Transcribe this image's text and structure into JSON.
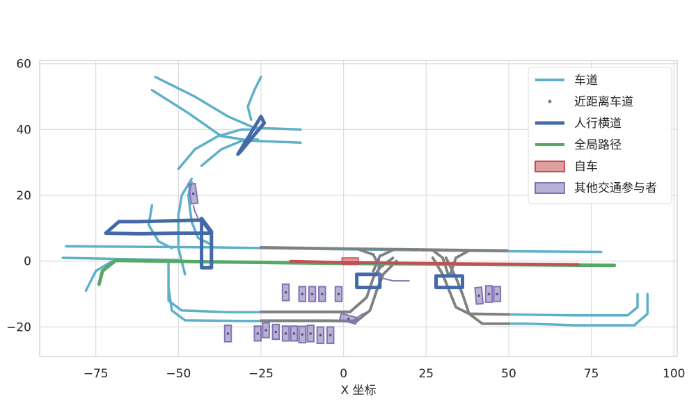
{
  "chart_data": {
    "type": "line",
    "title": "",
    "xlabel": "X 坐标",
    "ylabel": "",
    "xlim": [
      -92,
      101
    ],
    "ylim": [
      -29,
      61
    ],
    "xticks": [
      -75,
      -50,
      -25,
      0,
      25,
      50,
      75,
      100
    ],
    "yticks": [
      -20,
      0,
      20,
      40,
      60
    ],
    "xtick_labels": [
      "−75",
      "−50",
      "−25",
      "0",
      "25",
      "50",
      "75",
      "100"
    ],
    "ytick_labels": [
      "−20",
      "0",
      "20",
      "40",
      "60"
    ],
    "grid": true,
    "legend_position": "top-right",
    "legend": [
      {
        "label": "车道",
        "kind": "line",
        "color": "#5eb0c9"
      },
      {
        "label": "近距离车道",
        "kind": "dot",
        "color": "#808080"
      },
      {
        "label": "人行横道",
        "kind": "thick-line",
        "color": "#4469a8"
      },
      {
        "label": "全局路径",
        "kind": "line",
        "color": "#55a868"
      },
      {
        "label": "自车",
        "kind": "patch",
        "color": "#c44e52"
      },
      {
        "label": "其他交通参与者",
        "kind": "patch",
        "color": "#8172b3"
      }
    ],
    "colors": {
      "lane": "#5eb0c9",
      "near_lane": "#808080",
      "crosswalk": "#4469a8",
      "global_path": "#55a868",
      "ego": "#c44e52",
      "agent": "#8172b3"
    },
    "lanes": [
      [
        [
          -84,
          4.5
        ],
        [
          -40,
          4.2
        ],
        [
          0,
          3.6
        ],
        [
          40,
          3.1
        ],
        [
          78,
          2.8
        ]
      ],
      [
        [
          -85,
          1
        ],
        [
          -66,
          0.6
        ],
        [
          -50,
          0.3
        ]
      ],
      [
        [
          -57,
          56
        ],
        [
          -45,
          50
        ],
        [
          -35,
          44
        ],
        [
          -27,
          40.5
        ],
        [
          -13,
          40
        ]
      ],
      [
        [
          -58,
          52
        ],
        [
          -47,
          45
        ],
        [
          -37,
          38
        ],
        [
          -28,
          36.6
        ],
        [
          -13,
          36
        ]
      ],
      [
        [
          -25,
          56
        ],
        [
          -27,
          52
        ],
        [
          -29,
          47
        ],
        [
          -28,
          43
        ]
      ],
      [
        [
          -50,
          28
        ],
        [
          -45,
          34
        ],
        [
          -38,
          38
        ],
        [
          -31,
          40
        ],
        [
          -27,
          40
        ]
      ],
      [
        [
          -43,
          29
        ],
        [
          -37,
          34
        ],
        [
          -31,
          36.5
        ],
        [
          -26,
          37
        ]
      ],
      [
        [
          -46,
          25
        ],
        [
          -49,
          20
        ],
        [
          -50,
          14
        ],
        [
          -50,
          5
        ]
      ],
      [
        [
          -58,
          17
        ],
        [
          -59,
          11
        ],
        [
          -56,
          6
        ],
        [
          -52,
          4
        ]
      ],
      [
        [
          -50,
          4
        ],
        [
          -49,
          0
        ],
        [
          -48,
          -4
        ]
      ],
      [
        [
          -46,
          24
        ],
        [
          -47,
          20
        ],
        [
          -46,
          12
        ],
        [
          -44,
          7
        ],
        [
          -40,
          5
        ]
      ],
      [
        [
          -78,
          -9
        ],
        [
          -75,
          -3
        ],
        [
          -70,
          0
        ]
      ],
      [
        [
          -53,
          0
        ],
        [
          -53,
          -12
        ],
        [
          -49,
          -15
        ],
        [
          -35,
          -15.5
        ],
        [
          -10,
          -15.5
        ],
        [
          2,
          -15.5
        ],
        [
          7,
          -11
        ],
        [
          9,
          -5
        ],
        [
          11,
          -2
        ],
        [
          15,
          1
        ]
      ],
      [
        [
          -53,
          -8
        ],
        [
          -52,
          -15
        ],
        [
          -48,
          -18
        ],
        [
          -30,
          -18.2
        ],
        [
          -5,
          -18.2
        ],
        [
          4,
          -18.3
        ],
        [
          8,
          -15
        ],
        [
          10,
          -9
        ],
        [
          12,
          -4
        ],
        [
          16,
          0
        ]
      ],
      [
        [
          27,
          1
        ],
        [
          30,
          -4
        ],
        [
          32,
          -9
        ],
        [
          34,
          -14
        ],
        [
          38,
          -16
        ],
        [
          50,
          -16.2
        ],
        [
          70,
          -16.5
        ],
        [
          86,
          -16.5
        ],
        [
          89,
          -14
        ],
        [
          89,
          -10
        ]
      ],
      [
        [
          31,
          1
        ],
        [
          34,
          -5
        ],
        [
          36,
          -10
        ],
        [
          38,
          -16
        ],
        [
          42,
          -19
        ],
        [
          55,
          -19
        ],
        [
          70,
          -19.5
        ],
        [
          88,
          -19.5
        ],
        [
          92,
          -16
        ],
        [
          92,
          -10
        ]
      ]
    ],
    "near_lanes": [
      [
        [
          -25,
          4.2
        ],
        [
          0,
          3.8
        ],
        [
          25,
          3.5
        ],
        [
          50,
          3.2
        ]
      ],
      [
        [
          -25,
          -15.4
        ],
        [
          -10,
          -15.4
        ],
        [
          2,
          -15.4
        ],
        [
          7,
          -11
        ],
        [
          9,
          -5
        ],
        [
          11,
          -2
        ],
        [
          15,
          1
        ]
      ],
      [
        [
          -25,
          -18.1
        ],
        [
          -5,
          -18.1
        ],
        [
          4,
          -18.2
        ],
        [
          8,
          -15
        ],
        [
          10,
          -9
        ],
        [
          12,
          -4
        ],
        [
          16,
          0
        ]
      ],
      [
        [
          5,
          3.4
        ],
        [
          9,
          2
        ],
        [
          11,
          -2
        ]
      ],
      [
        [
          15,
          3.4
        ],
        [
          11,
          1.5
        ],
        [
          9,
          -3
        ]
      ],
      [
        [
          27,
          3.3
        ],
        [
          30,
          1
        ],
        [
          32,
          -5
        ]
      ],
      [
        [
          38,
          3.2
        ],
        [
          34,
          1
        ],
        [
          32,
          -5
        ]
      ],
      [
        [
          27,
          1
        ],
        [
          30,
          -4
        ],
        [
          32,
          -9
        ],
        [
          34,
          -14
        ],
        [
          38,
          -16
        ],
        [
          50,
          -16.2
        ]
      ],
      [
        [
          31,
          1
        ],
        [
          34,
          -5
        ],
        [
          36,
          -10
        ],
        [
          38,
          -16
        ],
        [
          42,
          -19
        ],
        [
          50,
          -19
        ]
      ]
    ],
    "crosswalks": [
      [
        [
          -72,
          8.5
        ],
        [
          -68,
          12
        ],
        [
          -62,
          12
        ],
        [
          -50,
          12.3
        ],
        [
          -43,
          12.5
        ],
        [
          -40,
          8.5
        ],
        [
          -50,
          8.5
        ],
        [
          -62,
          8.3
        ],
        [
          -72,
          8.5
        ]
      ],
      [
        [
          -43,
          13
        ],
        [
          -43,
          -2
        ],
        [
          -40,
          -2
        ],
        [
          -40,
          9
        ],
        [
          -43,
          13
        ]
      ],
      [
        [
          -32,
          32.5
        ],
        [
          -25,
          44
        ],
        [
          -24,
          42
        ],
        [
          -31,
          33.5
        ],
        [
          -32,
          32.5
        ]
      ],
      [
        [
          4,
          -4
        ],
        [
          4,
          -8
        ],
        [
          11,
          -8
        ],
        [
          11,
          -4
        ],
        [
          4,
          -4
        ]
      ],
      [
        [
          28,
          -4.5
        ],
        [
          28,
          -8
        ],
        [
          36,
          -8
        ],
        [
          36,
          -4.5
        ],
        [
          28,
          -4.5
        ]
      ]
    ],
    "global_path": [
      [
        -74,
        -7
      ],
      [
        -73,
        -3
      ],
      [
        -69,
        0.2
      ],
      [
        -40,
        -0.2
      ],
      [
        0,
        -0.7
      ],
      [
        40,
        -1
      ],
      [
        82,
        -1.3
      ]
    ],
    "ego_path": [
      [
        -16,
        0
      ],
      [
        0,
        -0.4
      ],
      [
        20,
        -0.6
      ],
      [
        40,
        -0.8
      ],
      [
        71,
        -1
      ]
    ],
    "ego": {
      "x": 2,
      "y": 0,
      "w": 5,
      "h": 2
    },
    "agents": [
      {
        "x": -45.5,
        "y": 20.5,
        "w": 2,
        "h": 6,
        "angle": 8
      },
      {
        "x": -35,
        "y": -22,
        "w": 2,
        "h": 5,
        "angle": 0
      },
      {
        "x": -26,
        "y": -22,
        "w": 2,
        "h": 4.5,
        "angle": 0
      },
      {
        "x": -23.5,
        "y": -21,
        "w": 2,
        "h": 4.5,
        "angle": 0
      },
      {
        "x": -20.5,
        "y": -21.5,
        "w": 2,
        "h": 4.5,
        "angle": 0
      },
      {
        "x": -17.5,
        "y": -22,
        "w": 2,
        "h": 4.5,
        "angle": 0
      },
      {
        "x": -15,
        "y": -22,
        "w": 2,
        "h": 4.5,
        "angle": 0
      },
      {
        "x": -12.5,
        "y": -22.3,
        "w": 2,
        "h": 5,
        "angle": 0
      },
      {
        "x": -10,
        "y": -22,
        "w": 2,
        "h": 5,
        "angle": 0
      },
      {
        "x": -7,
        "y": -22.5,
        "w": 2,
        "h": 5,
        "angle": 0
      },
      {
        "x": -4,
        "y": -22.5,
        "w": 2,
        "h": 5,
        "angle": 0
      },
      {
        "x": -17.5,
        "y": -9.5,
        "w": 2,
        "h": 5,
        "angle": 0
      },
      {
        "x": -12.5,
        "y": -10,
        "w": 2,
        "h": 4.5,
        "angle": 0
      },
      {
        "x": -9.5,
        "y": -10,
        "w": 2,
        "h": 4.5,
        "angle": 0
      },
      {
        "x": -6.5,
        "y": -10,
        "w": 2,
        "h": 4.5,
        "angle": 0
      },
      {
        "x": -1.5,
        "y": -10,
        "w": 2,
        "h": 4.5,
        "angle": 0
      },
      {
        "x": 1.5,
        "y": -17.5,
        "w": 5,
        "h": 2,
        "angle": -15
      },
      {
        "x": 41,
        "y": -10.5,
        "w": 2,
        "h": 5,
        "angle": 5
      },
      {
        "x": 44,
        "y": -10,
        "w": 2,
        "h": 5,
        "angle": 0
      },
      {
        "x": 46.5,
        "y": -10,
        "w": 2,
        "h": 4.5,
        "angle": 0
      }
    ],
    "agent_trajectories": [
      [
        [
          -45.5,
          17
        ],
        [
          -45,
          15
        ],
        [
          -44,
          13
        ]
      ],
      [
        [
          11,
          2
        ],
        [
          10.5,
          -2
        ],
        [
          11,
          -5
        ],
        [
          15,
          -6
        ],
        [
          20,
          -6
        ]
      ],
      [
        [
          3,
          -18
        ],
        [
          5,
          -16.5
        ],
        [
          7,
          -15.5
        ]
      ]
    ]
  }
}
